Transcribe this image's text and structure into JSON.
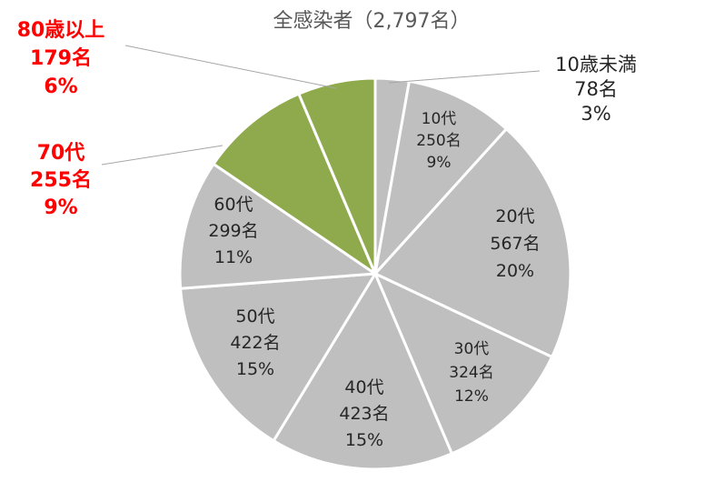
{
  "chart_data": {
    "type": "pie",
    "title": "全感染者（2,797名）",
    "slices": [
      {
        "label": "10歳未満",
        "count": "78名",
        "percent": "3%",
        "value": 78,
        "color": "#bfbfbf",
        "highlight": false
      },
      {
        "label": "10代",
        "count": "250名",
        "percent": "9%",
        "value": 250,
        "color": "#bfbfbf",
        "highlight": false
      },
      {
        "label": "20代",
        "count": "567名",
        "percent": "20%",
        "value": 567,
        "color": "#bfbfbf",
        "highlight": false
      },
      {
        "label": "30代",
        "count": "324名",
        "percent": "12%",
        "value": 324,
        "color": "#bfbfbf",
        "highlight": false
      },
      {
        "label": "40代",
        "count": "423名",
        "percent": "15%",
        "value": 423,
        "color": "#bfbfbf",
        "highlight": false
      },
      {
        "label": "50代",
        "count": "422名",
        "percent": "15%",
        "value": 422,
        "color": "#bfbfbf",
        "highlight": false
      },
      {
        "label": "60代",
        "count": "299名",
        "percent": "11%",
        "value": 299,
        "color": "#bfbfbf",
        "highlight": false
      },
      {
        "label": "70代",
        "count": "255名",
        "percent": "9%",
        "value": 255,
        "color": "#8faa4d",
        "highlight": true
      },
      {
        "label": "80歳以上",
        "count": "179名",
        "percent": "6%",
        "value": 179,
        "color": "#8faa4d",
        "highlight": true
      }
    ],
    "start": "12 o'clock",
    "direction": "clockwise",
    "highlight_label_color": "#ff0000"
  }
}
